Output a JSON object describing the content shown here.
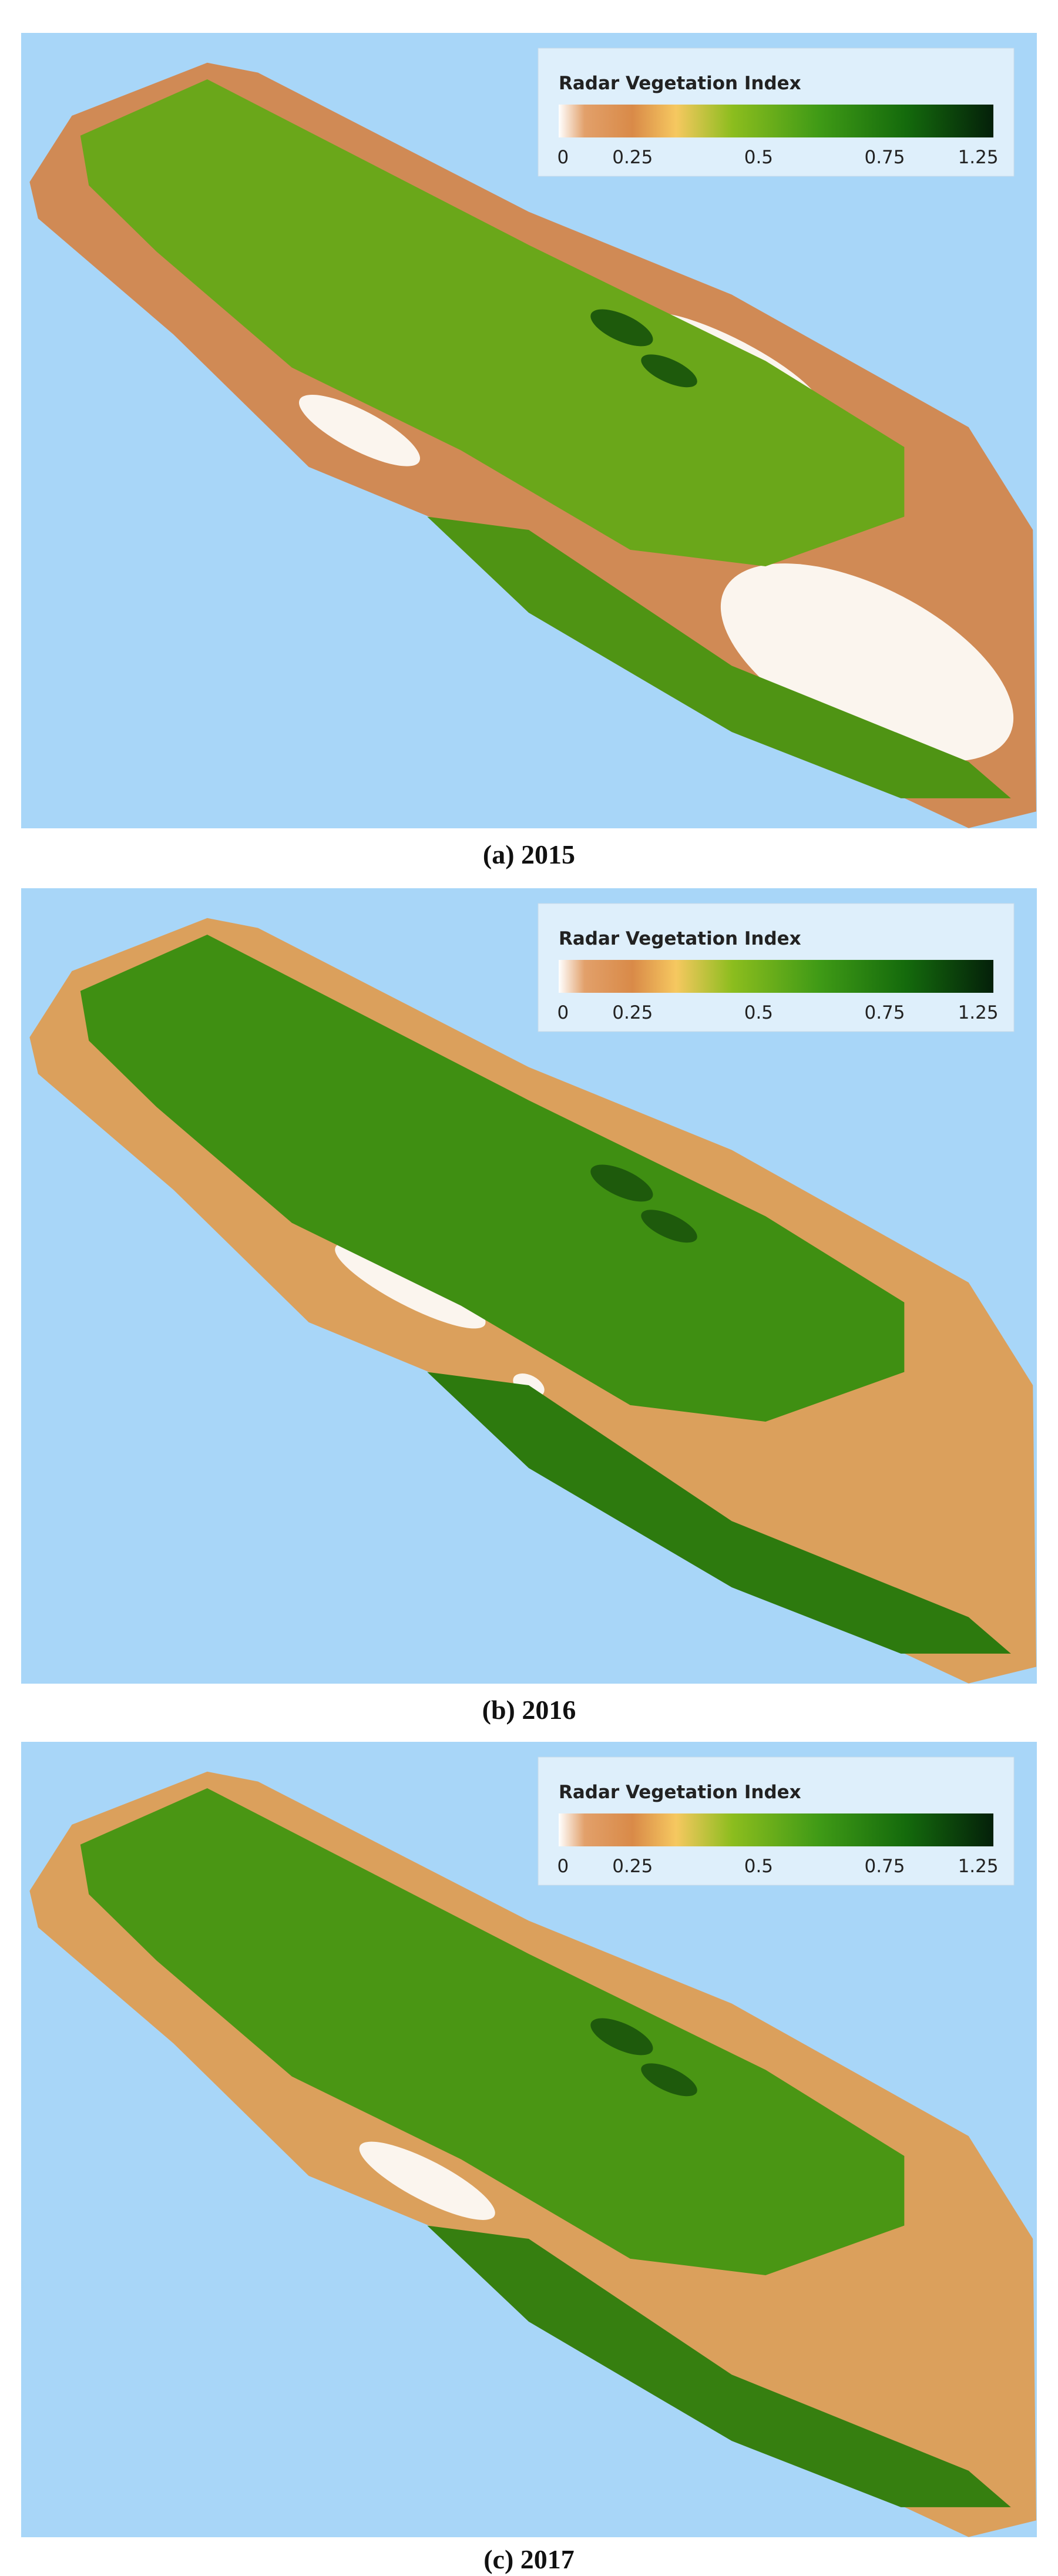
{
  "panels": [
    {
      "caption": "(a) 2015",
      "legend": {
        "title": "Radar Vegetation Index",
        "ticks": [
          "0",
          "0.25",
          "0.5",
          "0.75",
          "1.25"
        ]
      }
    },
    {
      "caption": "(b) 2016",
      "legend": {
        "title": "Radar Vegetation Index",
        "ticks": [
          "0",
          "0.25",
          "0.5",
          "0.75",
          "1.25"
        ]
      }
    },
    {
      "caption": "(c) 2017",
      "legend": {
        "title": "Radar Vegetation Index",
        "ticks": [
          "0",
          "0.25",
          "0.5",
          "0.75",
          "1.25"
        ]
      }
    }
  ]
}
